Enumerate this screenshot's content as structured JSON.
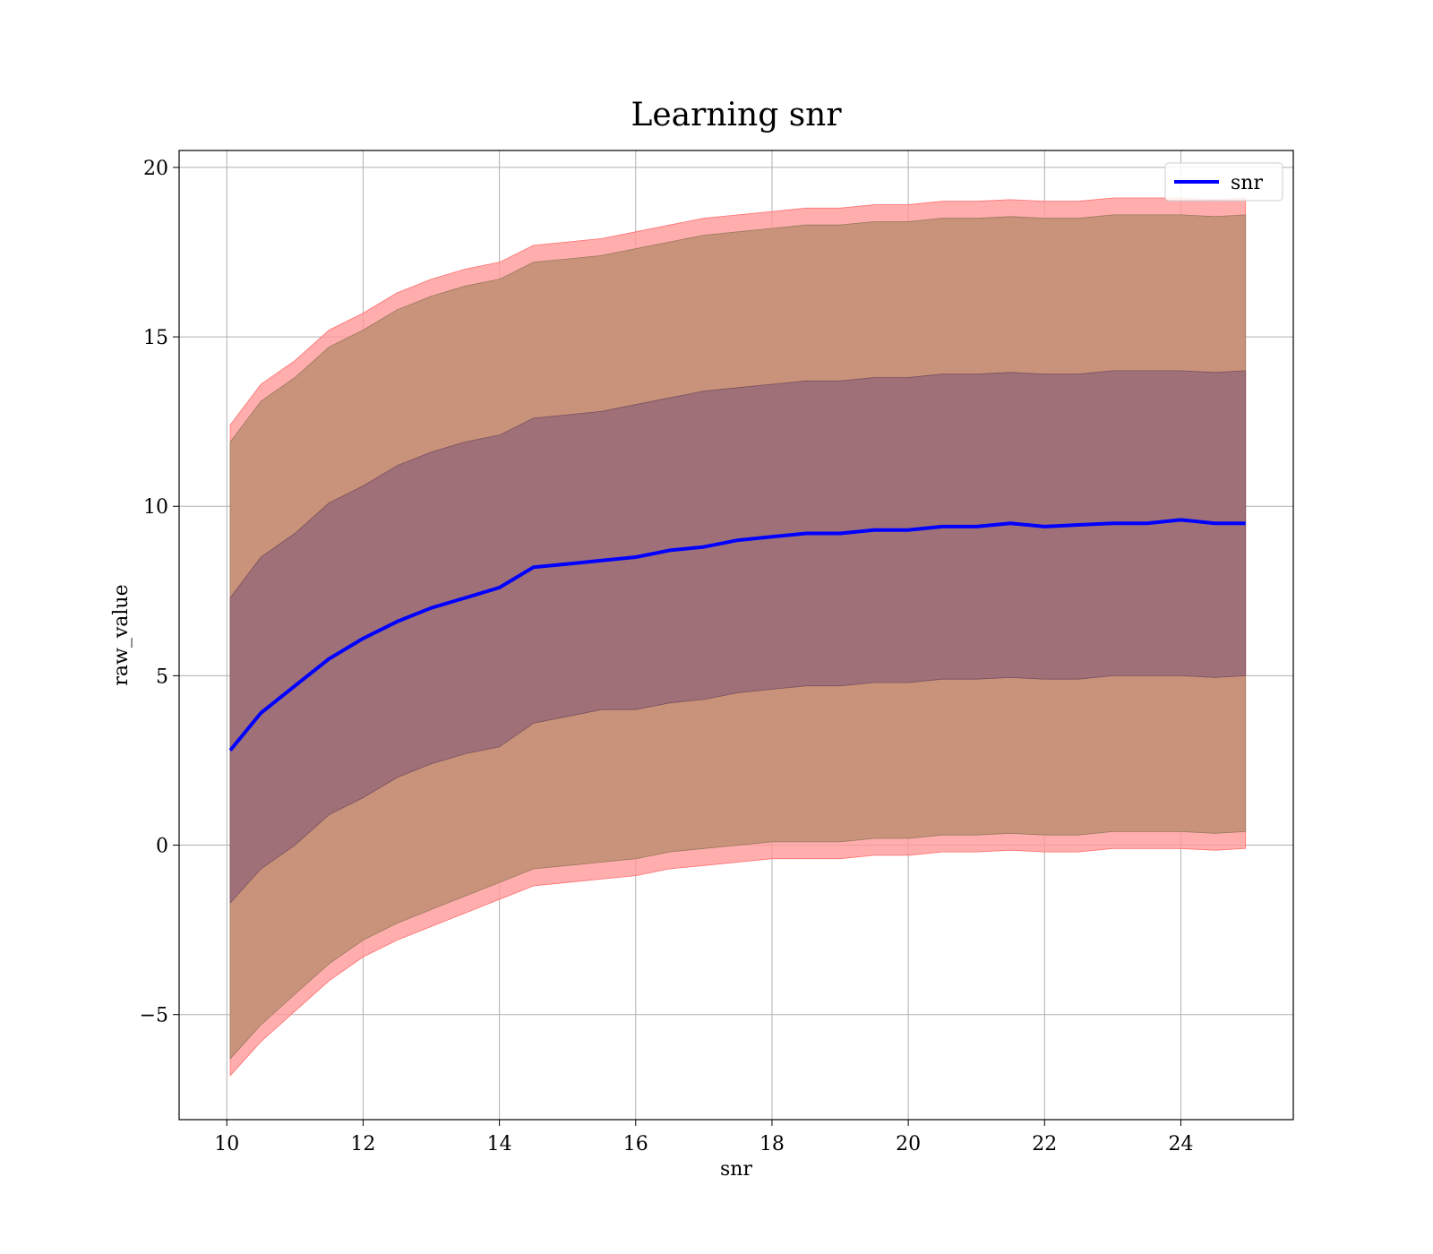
{
  "chart_data": {
    "type": "area",
    "title": "Learning snr",
    "xlabel": "snr",
    "ylabel": "raw_value",
    "xlim": [
      9.3,
      25.65
    ],
    "ylim": [
      -8.1,
      20.5
    ],
    "xticks": [
      10,
      12,
      14,
      16,
      18,
      20,
      22,
      24
    ],
    "xtick_labels": [
      "10",
      "12",
      "14",
      "16",
      "18",
      "20",
      "22",
      "24"
    ],
    "yticks": [
      -5,
      0,
      5,
      10,
      15,
      20
    ],
    "ytick_labels": [
      "−5",
      "0",
      "5",
      "10",
      "15",
      "20"
    ],
    "grid": true,
    "legend": {
      "position": "top-right",
      "entries": [
        "snr"
      ]
    },
    "colors": {
      "line": "#0000ff",
      "band_outer": "#ff9999",
      "band_middle": "#c8937a",
      "band_inner": "#a07078",
      "grid": "#b0b0b0"
    },
    "x": [
      10.05,
      10.5,
      11,
      11.5,
      12,
      12.5,
      13,
      13.5,
      14,
      14.5,
      15,
      15.5,
      16,
      16.5,
      17,
      17.5,
      18,
      18.5,
      19,
      19.5,
      20,
      20.5,
      21,
      21.5,
      22,
      22.5,
      23,
      23.5,
      24,
      24.5,
      24.95
    ],
    "series": [
      {
        "name": "snr",
        "role": "mean",
        "values": [
          2.8,
          3.9,
          4.7,
          5.5,
          6.1,
          6.6,
          7.0,
          7.3,
          7.6,
          8.2,
          8.3,
          8.4,
          8.5,
          8.7,
          8.8,
          9.0,
          9.1,
          9.2,
          9.2,
          9.3,
          9.3,
          9.4,
          9.4,
          9.5,
          9.4,
          9.45,
          9.5,
          9.5,
          9.6,
          9.5,
          9.5
        ]
      },
      {
        "role": "band_outer_upper",
        "values": [
          12.4,
          13.6,
          14.3,
          15.2,
          15.7,
          16.3,
          16.7,
          17.0,
          17.2,
          17.7,
          17.8,
          17.9,
          18.1,
          18.3,
          18.5,
          18.6,
          18.7,
          18.8,
          18.8,
          18.9,
          18.9,
          19.0,
          19.0,
          19.05,
          19.0,
          19.0,
          19.1,
          19.1,
          19.1,
          19.05,
          19.1
        ]
      },
      {
        "role": "band_middle_upper",
        "values": [
          11.9,
          13.1,
          13.8,
          14.7,
          15.2,
          15.8,
          16.2,
          16.5,
          16.7,
          17.2,
          17.3,
          17.4,
          17.6,
          17.8,
          18.0,
          18.1,
          18.2,
          18.3,
          18.3,
          18.4,
          18.4,
          18.5,
          18.5,
          18.55,
          18.5,
          18.5,
          18.6,
          18.6,
          18.6,
          18.55,
          18.6
        ]
      },
      {
        "role": "band_inner_upper",
        "values": [
          7.3,
          8.5,
          9.2,
          10.1,
          10.6,
          11.2,
          11.6,
          11.9,
          12.1,
          12.6,
          12.7,
          12.8,
          13.0,
          13.2,
          13.4,
          13.5,
          13.6,
          13.7,
          13.7,
          13.8,
          13.8,
          13.9,
          13.9,
          13.95,
          13.9,
          13.9,
          14.0,
          14.0,
          14.0,
          13.95,
          14.0
        ]
      },
      {
        "role": "band_inner_lower",
        "values": [
          -1.7,
          -0.7,
          0.0,
          0.9,
          1.4,
          2.0,
          2.4,
          2.7,
          2.9,
          3.6,
          3.8,
          4.0,
          4.0,
          4.2,
          4.3,
          4.5,
          4.6,
          4.7,
          4.7,
          4.8,
          4.8,
          4.9,
          4.9,
          4.95,
          4.9,
          4.9,
          5.0,
          5.0,
          5.0,
          4.95,
          5.0
        ]
      },
      {
        "role": "band_middle_lower",
        "values": [
          -6.3,
          -5.3,
          -4.4,
          -3.5,
          -2.8,
          -2.3,
          -1.9,
          -1.5,
          -1.1,
          -0.7,
          -0.6,
          -0.5,
          -0.4,
          -0.2,
          -0.1,
          0.0,
          0.1,
          0.1,
          0.1,
          0.2,
          0.2,
          0.3,
          0.3,
          0.35,
          0.3,
          0.3,
          0.4,
          0.4,
          0.4,
          0.35,
          0.4
        ]
      },
      {
        "role": "band_outer_lower",
        "values": [
          -6.8,
          -5.8,
          -4.9,
          -4.0,
          -3.3,
          -2.8,
          -2.4,
          -2.0,
          -1.6,
          -1.2,
          -1.1,
          -1.0,
          -0.9,
          -0.7,
          -0.6,
          -0.5,
          -0.4,
          -0.4,
          -0.4,
          -0.3,
          -0.3,
          -0.2,
          -0.2,
          -0.15,
          -0.2,
          -0.2,
          -0.1,
          -0.1,
          -0.1,
          -0.15,
          -0.1
        ]
      }
    ]
  }
}
